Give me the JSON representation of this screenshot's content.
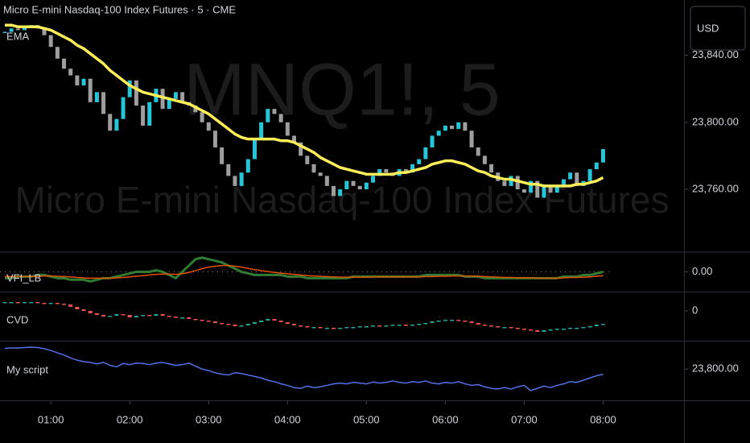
{
  "currency": "USD",
  "watermark": {
    "symbol": "MNQ1!, 5",
    "description": "Micro E-mini Nasdaq-100 Index Futures"
  },
  "chart_data": [
    {
      "type": "candlestick",
      "title": "Micro E-mini Nasdaq-100 Index Futures · 5 · CME",
      "up_color": "#26c6da",
      "down_color": "#9e9e9e",
      "values": [
        23854,
        23856,
        23855,
        23857,
        23858,
        23856,
        23852,
        23845,
        23838,
        23832,
        23828,
        23822,
        23826,
        23812,
        23818,
        23805,
        23795,
        23802,
        23815,
        23825,
        23810,
        23798,
        23812,
        23820,
        23808,
        23814,
        23818,
        23812,
        23810,
        23806,
        23800,
        23795,
        23785,
        23775,
        23768,
        23762,
        23770,
        23778,
        23790,
        23800,
        23808,
        23805,
        23800,
        23792,
        23788,
        23780,
        23775,
        23770,
        23768,
        23762,
        23756,
        23760,
        23765,
        23762,
        23760,
        23764,
        23768,
        23772,
        23770,
        23768,
        23772,
        23770,
        23775,
        23778,
        23785,
        23792,
        23795,
        23798,
        23796,
        23800,
        23795,
        23785,
        23780,
        23775,
        23770,
        23765,
        23762,
        23768,
        23760,
        23758,
        23765,
        23755,
        23762,
        23758,
        23762,
        23766,
        23770,
        23762,
        23765,
        23772,
        23776,
        23784
      ],
      "overlay": {
        "name": "EMA",
        "color": "#ffee58",
        "values": [
          23858,
          23858,
          23857,
          23857,
          23857,
          23857,
          23856,
          23855,
          23853,
          23851,
          23849,
          23846,
          23844,
          23841,
          23838,
          23835,
          23831,
          23828,
          23825,
          23822,
          23820,
          23818,
          23817,
          23816,
          23815,
          23814,
          23813,
          23812,
          23811,
          23809,
          23807,
          23805,
          23802,
          23799,
          23796,
          23793,
          23791,
          23790,
          23790,
          23790,
          23790,
          23790,
          23789,
          23789,
          23788,
          23786,
          23784,
          23782,
          23779,
          23777,
          23775,
          23773,
          23772,
          23771,
          23770,
          23769,
          23769,
          23769,
          23769,
          23769,
          23770,
          23770,
          23771,
          23772,
          23773,
          23775,
          23776,
          23777,
          23777,
          23776,
          23775,
          23773,
          23771,
          23770,
          23768,
          23767,
          23766,
          23766,
          23765,
          23764,
          23763,
          23763,
          23762,
          23762,
          23762,
          23762,
          23762,
          23763,
          23763,
          23764,
          23765,
          23767
        ]
      },
      "ylim": [
        23723,
        23873
      ],
      "yticks": [
        {
          "value": 23760,
          "label": "23,760.00"
        },
        {
          "value": 23800,
          "label": "23,800.00"
        },
        {
          "value": 23840,
          "label": "23,840.00"
        }
      ]
    },
    {
      "type": "line",
      "title": "VFI_LB",
      "series": [
        {
          "color": "#2e7d32",
          "values": [
            -2,
            -2,
            -1.5,
            -1.5,
            -1.5,
            -1,
            -1,
            -1.5,
            -2,
            -2,
            -2.5,
            -2.5,
            -2.5,
            -3,
            -2.5,
            -2,
            -2,
            -1.5,
            -1,
            -0.5,
            0,
            0,
            0,
            0.5,
            0,
            -1,
            -2,
            0,
            2,
            4,
            4.5,
            4,
            3.5,
            3,
            2,
            1,
            0,
            -0.5,
            -1,
            -1,
            -1,
            -1,
            -1,
            -1.5,
            -1.5,
            -1.5,
            -2,
            -2,
            -2,
            -2,
            -2,
            -2,
            -2,
            -1.5,
            -1.5,
            -1.5,
            -1.5,
            -1.5,
            -1.5,
            -1.5,
            -1.5,
            -1.5,
            -1.5,
            -1.5,
            -1,
            -1,
            -1,
            -1,
            -1,
            -1,
            -1.5,
            -1.5,
            -1.5,
            -2,
            -2,
            -2,
            -2,
            -2,
            -2,
            -2,
            -2,
            -2,
            -2,
            -2,
            -2,
            -1.5,
            -1.5,
            -1.5,
            -1,
            -1,
            -0.5,
            0
          ]
        },
        {
          "color": "#e65100",
          "values": [
            -1.5,
            -1.5,
            -1.5,
            -1.5,
            -1.5,
            -1.4,
            -1.3,
            -1.3,
            -1.4,
            -1.5,
            -1.6,
            -1.8,
            -1.9,
            -2,
            -2,
            -2,
            -2,
            -1.9,
            -1.8,
            -1.6,
            -1.4,
            -1.2,
            -1,
            -0.8,
            -0.7,
            -0.7,
            -0.8,
            -0.6,
            -0.2,
            0.4,
            1,
            1.5,
            1.8,
            2,
            2,
            1.8,
            1.5,
            1.1,
            0.7,
            0.4,
            0.1,
            -0.2,
            -0.4,
            -0.6,
            -0.8,
            -1,
            -1.2,
            -1.3,
            -1.4,
            -1.5,
            -1.6,
            -1.7,
            -1.7,
            -1.7,
            -1.7,
            -1.7,
            -1.6,
            -1.6,
            -1.6,
            -1.6,
            -1.6,
            -1.6,
            -1.6,
            -1.6,
            -1.5,
            -1.5,
            -1.4,
            -1.4,
            -1.3,
            -1.3,
            -1.3,
            -1.3,
            -1.4,
            -1.5,
            -1.6,
            -1.7,
            -1.8,
            -1.8,
            -1.9,
            -1.9,
            -1.9,
            -2,
            -2,
            -2,
            -2,
            -1.9,
            -1.8,
            -1.8,
            -1.7,
            -1.6,
            -1.4,
            -1.2
          ]
        }
      ],
      "ylim": [
        -6,
        6
      ],
      "yticks": [
        {
          "value": 0,
          "label": "0.00"
        }
      ]
    },
    {
      "type": "candlestick",
      "title": "CVD",
      "up_color": "#26a69a",
      "down_color": "#ef5350",
      "values": [
        11,
        11,
        10,
        11,
        11,
        10,
        9,
        10,
        9,
        8,
        5,
        2,
        0,
        -3,
        -5,
        -7,
        -6,
        -4,
        -5,
        -8,
        -6,
        -5,
        -6,
        -4,
        -6,
        -7,
        -8,
        -8,
        -10,
        -11,
        -12,
        -13,
        -15,
        -16,
        -17,
        -19,
        -18,
        -16,
        -14,
        -12,
        -10,
        -12,
        -14,
        -16,
        -18,
        -19,
        -20,
        -20,
        -21,
        -21,
        -22,
        -21,
        -20,
        -20,
        -19,
        -19,
        -18,
        -19,
        -18,
        -17,
        -17,
        -18,
        -17,
        -16,
        -15,
        -13,
        -12,
        -11,
        -11,
        -12,
        -13,
        -15,
        -17,
        -18,
        -19,
        -20,
        -20,
        -21,
        -22,
        -23,
        -24,
        -26,
        -24,
        -23,
        -22,
        -22,
        -21,
        -21,
        -20,
        -19,
        -17,
        -16
      ],
      "ylim": [
        -35,
        20
      ],
      "yticks": [
        0
      ]
    },
    {
      "type": "line",
      "title": "My script",
      "series": [
        {
          "color": "#5470e8",
          "values": [
            23856,
            23857,
            23857,
            23858,
            23859,
            23858,
            23855,
            23850,
            23844,
            23838,
            23830,
            23824,
            23820,
            23818,
            23814,
            23818,
            23810,
            23806,
            23815,
            23812,
            23816,
            23815,
            23812,
            23816,
            23818,
            23814,
            23810,
            23812,
            23816,
            23808,
            23800,
            23796,
            23790,
            23786,
            23784,
            23790,
            23788,
            23784,
            23780,
            23776,
            23770,
            23766,
            23760,
            23756,
            23750,
            23748,
            23754,
            23750,
            23752,
            23756,
            23760,
            23762,
            23760,
            23764,
            23762,
            23760,
            23765,
            23762,
            23764,
            23768,
            23764,
            23762,
            23766,
            23764,
            23768,
            23762,
            23760,
            23764,
            23762,
            23766,
            23760,
            23756,
            23758,
            23752,
            23748,
            23746,
            23750,
            23746,
            23752,
            23756,
            23742,
            23748,
            23754,
            23750,
            23756,
            23760,
            23766,
            23764,
            23770,
            23776,
            23782,
            23786
          ]
        }
      ],
      "ylim": [
        23720,
        23870
      ],
      "yticks": [
        {
          "value": 23800,
          "label": "23,800.00"
        }
      ],
      "categories": [
        null,
        null,
        null,
        null,
        null,
        null,
        null,
        "01:00",
        null,
        null,
        null,
        null,
        null,
        null,
        null,
        null,
        null,
        null,
        null,
        "02:00",
        null,
        null,
        null,
        null,
        null,
        null,
        null,
        null,
        null,
        null,
        null,
        "03:00",
        null,
        null,
        null,
        null,
        null,
        null,
        null,
        null,
        null,
        null,
        null,
        "04:00",
        null,
        null,
        null,
        null,
        null,
        null,
        null,
        null,
        null,
        null,
        null,
        "05:00",
        null,
        null,
        null,
        null,
        null,
        null,
        null,
        null,
        null,
        null,
        null,
        "06:00",
        null,
        null,
        null,
        null,
        null,
        null,
        null,
        null,
        null,
        null,
        null,
        "07:00",
        null,
        null,
        null,
        null,
        null,
        null,
        null,
        null,
        null,
        null,
        null,
        "08:00"
      ]
    }
  ]
}
